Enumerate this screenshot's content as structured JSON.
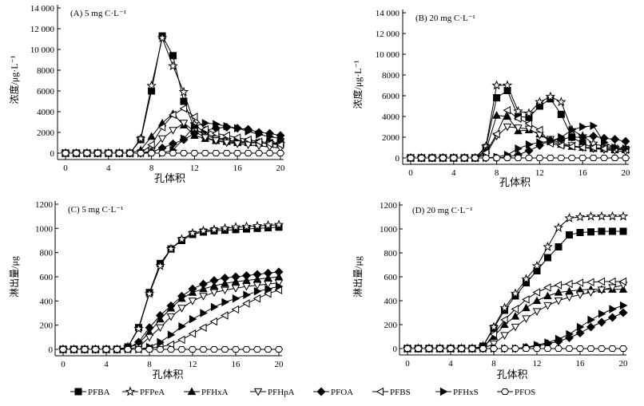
{
  "chart_data": [
    {
      "type": "line",
      "title": "(A) 5 mg C·L⁻¹",
      "xlabel": "孔体积",
      "ylabel": "浓度/μg·L⁻¹",
      "xlim": [
        0,
        20
      ],
      "ylim": [
        0,
        14000
      ],
      "xticks": [
        "0",
        "4",
        "8",
        "12",
        "16",
        "20"
      ],
      "yticks": [
        "0",
        "2000",
        "4000",
        "6000",
        "8000",
        "10 000",
        "12 000",
        "14 000"
      ],
      "x": [
        0,
        1,
        2,
        3,
        4,
        5,
        6,
        7,
        8,
        9,
        10,
        11,
        12,
        13,
        14,
        15,
        16,
        17,
        18,
        19,
        20
      ],
      "series": [
        {
          "name": "PFBA",
          "values": [
            0,
            0,
            0,
            0,
            0,
            0,
            0,
            1300,
            6000,
            11300,
            9400,
            5000,
            2400,
            1700,
            1400,
            1200,
            1100,
            1100,
            1000,
            1000,
            1000
          ]
        },
        {
          "name": "PFPeA",
          "values": [
            0,
            0,
            0,
            0,
            0,
            0,
            0,
            1400,
            6500,
            11100,
            8400,
            5900,
            2800,
            1900,
            1500,
            1300,
            1100,
            1100,
            1000,
            1000,
            900
          ]
        },
        {
          "name": "PFHxA",
          "values": [
            0,
            0,
            0,
            0,
            0,
            0,
            0,
            300,
            1600,
            2900,
            3800,
            2700,
            1700,
            1400,
            1200,
            1100,
            1000,
            1000,
            1000,
            900,
            900
          ]
        },
        {
          "name": "PFHpA",
          "values": [
            0,
            0,
            0,
            0,
            0,
            0,
            0,
            0,
            200,
            1400,
            2200,
            2900,
            2100,
            1500,
            1200,
            1000,
            900,
            800,
            700,
            600,
            500
          ]
        },
        {
          "name": "PFOA",
          "values": [
            0,
            0,
            0,
            0,
            0,
            0,
            0,
            0,
            100,
            500,
            900,
            1300,
            1900,
            2200,
            2400,
            2500,
            2400,
            2300,
            2000,
            1900,
            1700
          ]
        },
        {
          "name": "PFBS",
          "values": [
            0,
            0,
            0,
            0,
            0,
            0,
            0,
            0,
            800,
            2500,
            3700,
            4300,
            3500,
            2300,
            1900,
            1700,
            1500,
            1300,
            1100,
            900,
            800
          ]
        },
        {
          "name": "PFHxS",
          "values": [
            0,
            0,
            0,
            0,
            0,
            0,
            0,
            0,
            0,
            0,
            300,
            1400,
            2600,
            2900,
            2800,
            2600,
            2400,
            2100,
            1800,
            1600,
            1400
          ]
        },
        {
          "name": "PFOS",
          "values": [
            0,
            0,
            0,
            0,
            0,
            0,
            0,
            0,
            0,
            0,
            0,
            0,
            0,
            0,
            0,
            0,
            0,
            0,
            0,
            0,
            0
          ]
        }
      ]
    },
    {
      "type": "line",
      "title": "(B) 20 mg C·L⁻¹",
      "xlabel": "孔体积",
      "ylabel": "浓度/μg·L⁻¹",
      "xlim": [
        0,
        20
      ],
      "ylim": [
        0,
        14000
      ],
      "xticks": [
        "0",
        "4",
        "8",
        "12",
        "16",
        "20"
      ],
      "yticks": [
        "0",
        "2000",
        "4000",
        "6000",
        "8000",
        "10 000",
        "12 000",
        "14 000"
      ],
      "x": [
        0,
        1,
        2,
        3,
        4,
        5,
        6,
        7,
        8,
        9,
        10,
        11,
        12,
        13,
        14,
        15,
        16,
        17,
        18,
        19,
        20
      ],
      "series": [
        {
          "name": "PFBA",
          "values": [
            0,
            0,
            0,
            0,
            0,
            0,
            0,
            1000,
            5800,
            6500,
            4000,
            3900,
            5000,
            5700,
            4200,
            2000,
            1400,
            1000,
            900,
            800,
            800
          ]
        },
        {
          "name": "PFPeA",
          "values": [
            0,
            0,
            0,
            0,
            0,
            0,
            0,
            1100,
            7000,
            7000,
            4500,
            4300,
            5400,
            5900,
            5400,
            2700,
            2100,
            1400,
            1100,
            1000,
            900
          ]
        },
        {
          "name": "PFHxA",
          "values": [
            0,
            0,
            0,
            0,
            0,
            0,
            0,
            700,
            4100,
            4000,
            2600,
            2700,
            2300,
            1600,
            1300,
            1100,
            1000,
            900,
            900,
            800,
            800
          ]
        },
        {
          "name": "PFHpA",
          "values": [
            0,
            0,
            0,
            0,
            0,
            0,
            0,
            300,
            2100,
            3000,
            2900,
            2800,
            2200,
            1800,
            1400,
            1200,
            1000,
            900,
            800,
            700,
            600
          ]
        },
        {
          "name": "PFOA",
          "values": [
            0,
            0,
            0,
            0,
            0,
            0,
            0,
            0,
            0,
            100,
            300,
            700,
            1200,
            1700,
            1800,
            2000,
            2000,
            2100,
            1900,
            1800,
            1600
          ]
        },
        {
          "name": "PFBS",
          "values": [
            0,
            0,
            0,
            0,
            0,
            0,
            0,
            500,
            2300,
            4600,
            3800,
            3300,
            2700,
            1400,
            1200,
            1100,
            1000,
            1000,
            900,
            900,
            800
          ]
        },
        {
          "name": "PFHxS",
          "values": [
            0,
            0,
            0,
            0,
            0,
            0,
            0,
            0,
            100,
            300,
            900,
            1300,
            1500,
            1600,
            2000,
            2700,
            3000,
            3100,
            1500,
            1000,
            900
          ]
        },
        {
          "name": "PFOS",
          "values": [
            0,
            0,
            0,
            0,
            0,
            0,
            0,
            0,
            0,
            0,
            0,
            0,
            0,
            0,
            0,
            0,
            0,
            0,
            0,
            0,
            0
          ]
        }
      ]
    },
    {
      "type": "line",
      "title": "(C) 5 mg C·L⁻¹",
      "xlabel": "孔体积",
      "ylabel": "淋出量/μg",
      "xlim": [
        0,
        20
      ],
      "ylim": [
        0,
        1200
      ],
      "xticks": [
        "0",
        "4",
        "8",
        "12",
        "16",
        "20"
      ],
      "yticks": [
        "0",
        "200",
        "400",
        "600",
        "800",
        "1000",
        "1200"
      ],
      "x": [
        0,
        1,
        2,
        3,
        4,
        5,
        6,
        7,
        8,
        9,
        10,
        11,
        12,
        13,
        14,
        15,
        16,
        17,
        18,
        19,
        20
      ],
      "series": [
        {
          "name": "PFBA",
          "values": [
            0,
            0,
            0,
            0,
            0,
            0,
            20,
            180,
            470,
            710,
            830,
            900,
            950,
            970,
            980,
            985,
            990,
            995,
            1000,
            1005,
            1010
          ]
        },
        {
          "name": "PFPeA",
          "values": [
            0,
            0,
            0,
            0,
            0,
            0,
            20,
            170,
            460,
            690,
            830,
            910,
            960,
            980,
            990,
            1000,
            1010,
            1015,
            1020,
            1025,
            1030
          ]
        },
        {
          "name": "PFHxA",
          "values": [
            0,
            0,
            0,
            0,
            0,
            0,
            10,
            50,
            140,
            250,
            340,
            420,
            470,
            500,
            525,
            545,
            560,
            570,
            580,
            590,
            600
          ]
        },
        {
          "name": "PFHpA",
          "values": [
            0,
            0,
            0,
            0,
            0,
            0,
            0,
            20,
            100,
            180,
            270,
            340,
            400,
            440,
            470,
            490,
            505,
            520,
            530,
            540,
            550
          ]
        },
        {
          "name": "PFOA",
          "values": [
            0,
            0,
            0,
            0,
            0,
            0,
            10,
            60,
            180,
            280,
            360,
            440,
            500,
            540,
            570,
            590,
            600,
            610,
            620,
            630,
            640
          ]
        },
        {
          "name": "PFBS",
          "values": [
            0,
            0,
            0,
            0,
            0,
            0,
            0,
            0,
            10,
            20,
            40,
            80,
            130,
            180,
            230,
            280,
            330,
            380,
            420,
            460,
            490
          ]
        },
        {
          "name": "PFHxS",
          "values": [
            0,
            0,
            0,
            0,
            0,
            0,
            0,
            0,
            20,
            60,
            120,
            190,
            250,
            300,
            350,
            390,
            420,
            450,
            480,
            500,
            520
          ]
        },
        {
          "name": "PFOS",
          "values": [
            0,
            0,
            0,
            0,
            0,
            0,
            0,
            0,
            0,
            0,
            0,
            0,
            0,
            0,
            0,
            0,
            0,
            0,
            0,
            0,
            0
          ]
        }
      ]
    },
    {
      "type": "line",
      "title": "(D) 20 mg C·L⁻¹",
      "xlabel": "孔体积",
      "ylabel": "淋出量/μg",
      "xlim": [
        0,
        20
      ],
      "ylim": [
        0,
        1200
      ],
      "xticks": [
        "0",
        "4",
        "8",
        "12",
        "16",
        "20"
      ],
      "yticks": [
        "0",
        "200",
        "400",
        "600",
        "800",
        "1000",
        "1200"
      ],
      "x": [
        0,
        1,
        2,
        3,
        4,
        5,
        6,
        7,
        8,
        9,
        10,
        11,
        12,
        13,
        14,
        15,
        16,
        17,
        18,
        19,
        20
      ],
      "series": [
        {
          "name": "PFBA",
          "values": [
            0,
            0,
            0,
            0,
            0,
            0,
            0,
            20,
            170,
            320,
            440,
            550,
            650,
            760,
            850,
            950,
            970,
            975,
            980,
            980,
            980
          ]
        },
        {
          "name": "PFPeA",
          "values": [
            0,
            0,
            0,
            0,
            0,
            0,
            0,
            20,
            180,
            340,
            460,
            580,
            690,
            850,
            1010,
            1090,
            1100,
            1105,
            1105,
            1105,
            1105
          ]
        },
        {
          "name": "PFHxA",
          "values": [
            0,
            0,
            0,
            0,
            0,
            0,
            0,
            10,
            100,
            200,
            270,
            340,
            400,
            440,
            470,
            480,
            490,
            495,
            495,
            495,
            495
          ]
        },
        {
          "name": "PFHpA",
          "values": [
            0,
            0,
            0,
            0,
            0,
            0,
            0,
            0,
            40,
            110,
            180,
            250,
            310,
            360,
            400,
            430,
            450,
            470,
            490,
            510,
            530
          ]
        },
        {
          "name": "PFOA",
          "values": [
            0,
            0,
            0,
            0,
            0,
            0,
            0,
            0,
            0,
            0,
            0,
            10,
            20,
            40,
            60,
            90,
            130,
            180,
            220,
            260,
            300
          ]
        },
        {
          "name": "PFBS",
          "values": [
            0,
            0,
            0,
            0,
            0,
            0,
            0,
            0,
            120,
            240,
            330,
            410,
            470,
            510,
            530,
            540,
            550,
            555,
            560,
            560,
            560
          ]
        },
        {
          "name": "PFHxS",
          "values": [
            0,
            0,
            0,
            0,
            0,
            0,
            0,
            0,
            0,
            0,
            0,
            10,
            30,
            50,
            80,
            120,
            180,
            240,
            290,
            330,
            360
          ]
        },
        {
          "name": "PFOS",
          "values": [
            0,
            0,
            0,
            0,
            0,
            0,
            0,
            0,
            0,
            0,
            0,
            0,
            0,
            0,
            0,
            0,
            0,
            0,
            0,
            0,
            0
          ]
        }
      ]
    }
  ],
  "legend": {
    "entries": [
      {
        "name": "PFBA",
        "marker": "square-filled"
      },
      {
        "name": "PFPeA",
        "marker": "star-open"
      },
      {
        "name": "PFHxA",
        "marker": "triangle-up-filled"
      },
      {
        "name": "PFHpA",
        "marker": "triangle-down-open"
      },
      {
        "name": "PFOA",
        "marker": "diamond-filled"
      },
      {
        "name": "PFBS",
        "marker": "triangle-left-open"
      },
      {
        "name": "PFHxS",
        "marker": "triangle-right-filled"
      },
      {
        "name": "PFOS",
        "marker": "hexagon-open"
      }
    ],
    "placement": "bottom"
  },
  "colors": {
    "line": "#000000",
    "background": "#ffffff"
  }
}
